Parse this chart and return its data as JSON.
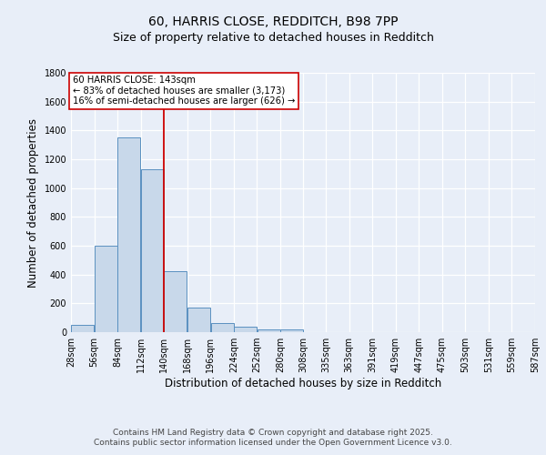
{
  "title_line1": "60, HARRIS CLOSE, REDDITCH, B98 7PP",
  "title_line2": "Size of property relative to detached houses in Redditch",
  "bar_heights": [
    50,
    600,
    1350,
    1130,
    425,
    170,
    65,
    40,
    20,
    20,
    0,
    0,
    0,
    0,
    0,
    0,
    0,
    0,
    0,
    0
  ],
  "bin_edges": [
    28,
    56,
    84,
    112,
    140,
    168,
    196,
    224,
    252,
    280,
    308,
    335,
    363,
    391,
    419,
    447,
    475,
    503,
    531,
    559,
    587
  ],
  "x_tick_labels": [
    "28sqm",
    "56sqm",
    "84sqm",
    "112sqm",
    "140sqm",
    "168sqm",
    "196sqm",
    "224sqm",
    "252sqm",
    "280sqm",
    "308sqm",
    "335sqm",
    "363sqm",
    "391sqm",
    "419sqm",
    "447sqm",
    "475sqm",
    "503sqm",
    "531sqm",
    "559sqm",
    "587sqm"
  ],
  "bar_color": "#c8d8ea",
  "bar_edge_color": "#5a90c0",
  "property_line_x": 140,
  "property_line_color": "#cc0000",
  "ylim": [
    0,
    1800
  ],
  "yticks": [
    0,
    200,
    400,
    600,
    800,
    1000,
    1200,
    1400,
    1600,
    1800
  ],
  "ylabel": "Number of detached properties",
  "xlabel": "Distribution of detached houses by size in Redditch",
  "annotation_text": "60 HARRIS CLOSE: 143sqm\n← 83% of detached houses are smaller (3,173)\n16% of semi-detached houses are larger (626) →",
  "annotation_box_color": "#ffffff",
  "annotation_box_edge": "#cc0000",
  "footer_line1": "Contains HM Land Registry data © Crown copyright and database right 2025.",
  "footer_line2": "Contains public sector information licensed under the Open Government Licence v3.0.",
  "background_color": "#e8eef8",
  "plot_bg_color": "#e8eef8",
  "grid_color": "#ffffff",
  "title_fontsize": 10,
  "subtitle_fontsize": 9,
  "tick_fontsize": 7,
  "ylabel_fontsize": 8.5,
  "xlabel_fontsize": 8.5,
  "footer_fontsize": 6.5
}
